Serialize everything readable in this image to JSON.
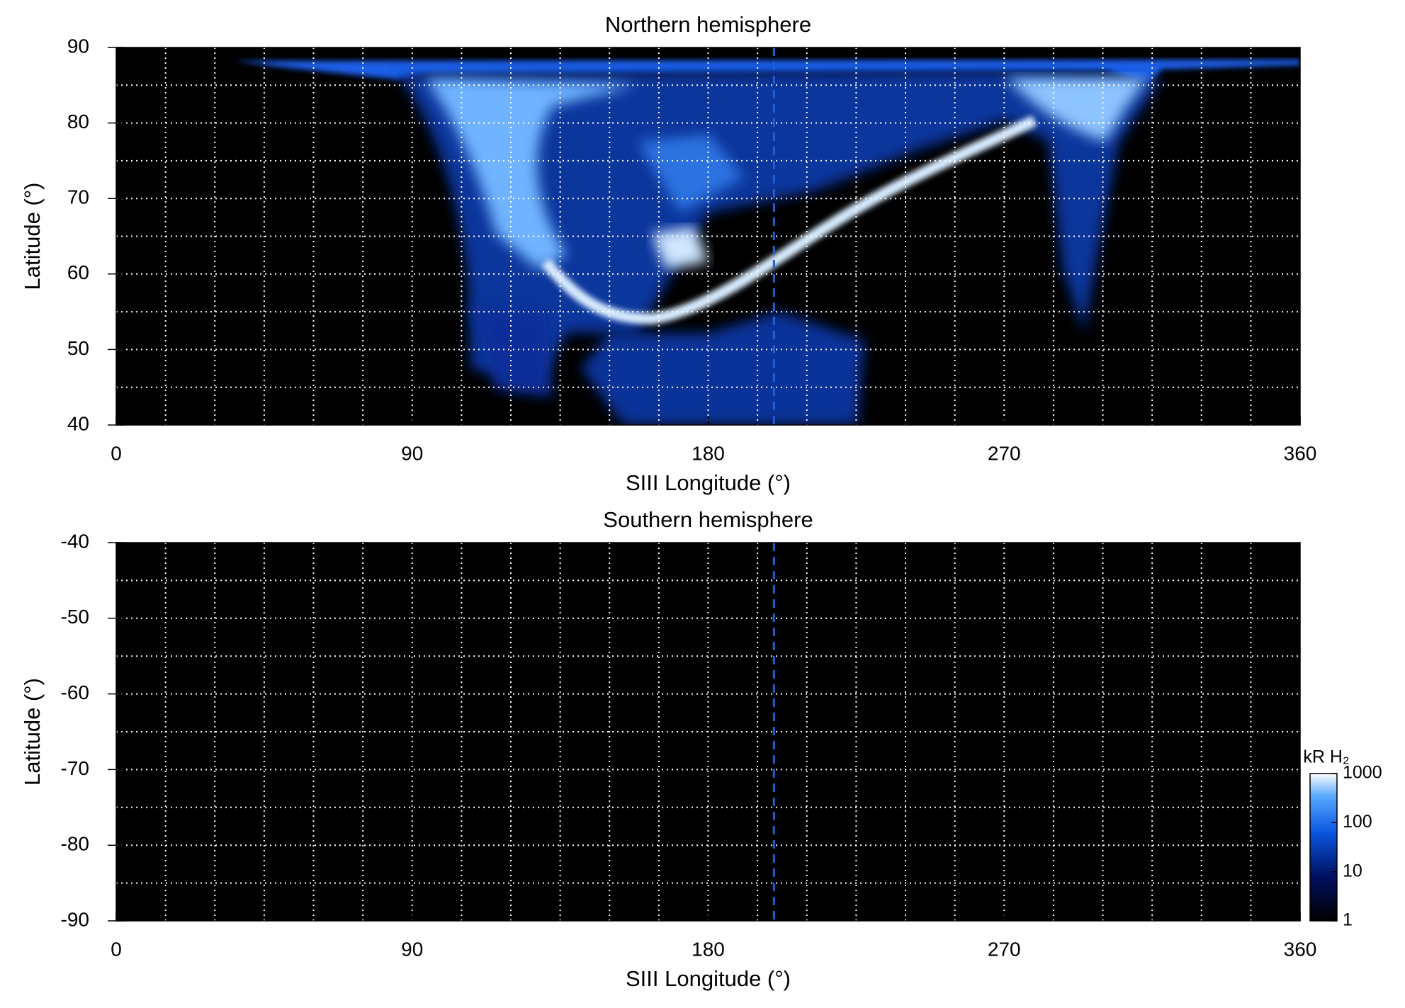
{
  "chart_data": [
    {
      "type": "heatmap",
      "title": "Northern hemisphere",
      "xlabel": "SIII Longitude (°)",
      "ylabel": "Latitude (°)",
      "xlim": [
        0,
        360
      ],
      "xticks": [
        0,
        90,
        180,
        270,
        360
      ],
      "xgrid": [
        15,
        30,
        45,
        60,
        75,
        90,
        105,
        120,
        135,
        150,
        165,
        180,
        195,
        210,
        225,
        240,
        255,
        270,
        285,
        300,
        315,
        330,
        345
      ],
      "ylim": [
        40,
        90
      ],
      "yticks": [
        40,
        50,
        60,
        70,
        80,
        90
      ],
      "ygrid": [
        45,
        50,
        55,
        60,
        65,
        70,
        75,
        80,
        85
      ],
      "vline": 200,
      "vline_color": "#1f5fd6"
    },
    {
      "type": "heatmap",
      "title": "Southern hemisphere",
      "xlabel": "SIII Longitude (°)",
      "ylabel": "Latitude (°)",
      "xlim": [
        0,
        360
      ],
      "xticks": [
        0,
        90,
        180,
        270,
        360
      ],
      "xgrid": [
        15,
        30,
        45,
        60,
        75,
        90,
        105,
        120,
        135,
        150,
        165,
        180,
        195,
        210,
        225,
        240,
        255,
        270,
        285,
        300,
        315,
        330,
        345
      ],
      "ylim": [
        -90,
        -40
      ],
      "yticks": [
        -90,
        -80,
        -70,
        -60,
        -50,
        -40
      ],
      "ygrid": [
        -85,
        -80,
        -75,
        -70,
        -65,
        -60,
        -55,
        -50,
        -45
      ],
      "vline": 200,
      "vline_color": "#1f5fd6",
      "colorbar": {
        "label": "kR H₂",
        "log": true,
        "lim": [
          1,
          1000
        ],
        "ticks": [
          1,
          10,
          100,
          1000
        ]
      }
    }
  ]
}
